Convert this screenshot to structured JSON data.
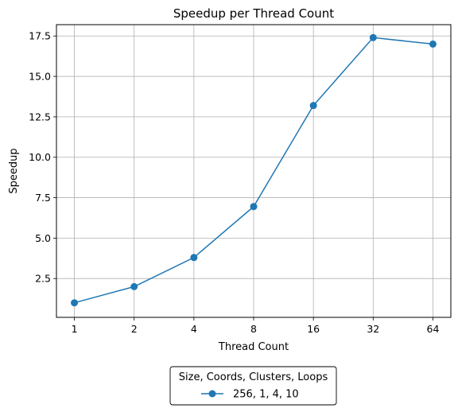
{
  "chart_data": {
    "type": "line",
    "title": "Speedup per Thread Count",
    "xlabel": "Thread Count",
    "ylabel": "Speedup",
    "x_scale": "log2",
    "categories": [
      "1",
      "2",
      "4",
      "8",
      "16",
      "32",
      "64"
    ],
    "x": [
      1,
      2,
      4,
      8,
      16,
      32,
      64
    ],
    "y_ticks": [
      "2.5",
      "5.0",
      "7.5",
      "10.0",
      "12.5",
      "15.0",
      "17.5"
    ],
    "ylim": [
      0.1,
      18.2
    ],
    "grid": true,
    "legend": {
      "placement": "below",
      "title": "Size, Coords, Clusters, Loops"
    },
    "series": [
      {
        "name": "256, 1, 4, 10",
        "color": "#1f77b4",
        "marker": "circle",
        "values": [
          1.0,
          2.0,
          3.8,
          6.95,
          13.2,
          17.4,
          17.0
        ]
      }
    ]
  }
}
